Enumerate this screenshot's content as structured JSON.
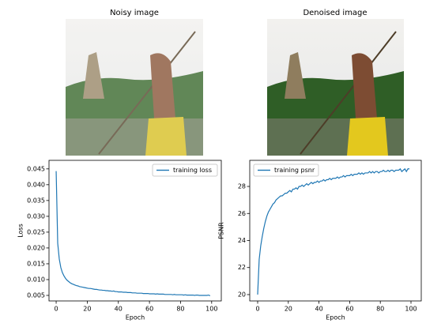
{
  "images": [
    {
      "title": "Noisy image"
    },
    {
      "title": "Denoised image"
    }
  ],
  "chart_data": [
    {
      "type": "line",
      "xlabel": "Epoch",
      "ylabel": "Loss",
      "legend": "upper right",
      "grid": false,
      "x": [
        0,
        1,
        2,
        3,
        4,
        5,
        6,
        7,
        8,
        9,
        10,
        11,
        12,
        13,
        14,
        15,
        16,
        17,
        18,
        19,
        20,
        21,
        22,
        23,
        24,
        25,
        26,
        27,
        28,
        29,
        30,
        31,
        32,
        33,
        34,
        35,
        36,
        37,
        38,
        39,
        40,
        41,
        42,
        43,
        44,
        45,
        46,
        47,
        48,
        49,
        50,
        51,
        52,
        53,
        54,
        55,
        56,
        57,
        58,
        59,
        60,
        61,
        62,
        63,
        64,
        65,
        66,
        67,
        68,
        69,
        70,
        71,
        72,
        73,
        74,
        75,
        76,
        77,
        78,
        79,
        80,
        81,
        82,
        83,
        84,
        85,
        86,
        87,
        88,
        89,
        90,
        91,
        92,
        93,
        94,
        95,
        96,
        97,
        98,
        99
      ],
      "series": [
        {
          "name": "training loss",
          "color": "#1f77b4",
          "values": [
            0.0443,
            0.0215,
            0.0165,
            0.0138,
            0.0122,
            0.0112,
            0.0104,
            0.0098,
            0.0094,
            0.009,
            0.0087,
            0.0085,
            0.0083,
            0.0081,
            0.008,
            0.0078,
            0.0077,
            0.0076,
            0.0075,
            0.0074,
            0.0073,
            0.0072,
            0.0072,
            0.0071,
            0.007,
            0.0069,
            0.0069,
            0.0068,
            0.0067,
            0.0067,
            0.0066,
            0.0066,
            0.0065,
            0.0065,
            0.0064,
            0.0064,
            0.0063,
            0.0064,
            0.0062,
            0.0062,
            0.0061,
            0.0061,
            0.0061,
            0.006,
            0.006,
            0.006,
            0.0059,
            0.0059,
            0.0059,
            0.0058,
            0.0058,
            0.0058,
            0.0057,
            0.0057,
            0.0057,
            0.0057,
            0.0056,
            0.0056,
            0.0056,
            0.0056,
            0.0055,
            0.0055,
            0.0055,
            0.0055,
            0.0054,
            0.0055,
            0.0054,
            0.0054,
            0.0054,
            0.0054,
            0.0053,
            0.0053,
            0.0053,
            0.0053,
            0.0053,
            0.0052,
            0.0053,
            0.0052,
            0.0052,
            0.0052,
            0.0052,
            0.0052,
            0.0051,
            0.0052,
            0.0051,
            0.0051,
            0.0051,
            0.0051,
            0.0051,
            0.005,
            0.0051,
            0.0051,
            0.005,
            0.005,
            0.005,
            0.005,
            0.005,
            0.005,
            0.0051,
            0.0049
          ]
        }
      ],
      "xlim": [
        -4.6,
        106.2
      ],
      "xticks": [
        0,
        20,
        40,
        60,
        80,
        100
      ],
      "ylim": [
        0.00325,
        0.0477
      ],
      "yticks": [
        0.005,
        {
          "value": 0.01,
          "label": "0.010"
        },
        0.015,
        {
          "value": 0.02,
          "label": "0.020"
        },
        0.025,
        {
          "value": 0.03,
          "label": "0.030"
        },
        0.035,
        {
          "value": 0.04,
          "label": "0.040"
        },
        0.045
      ]
    },
    {
      "type": "line",
      "xlabel": "Epoch",
      "ylabel": "PSNR",
      "legend": "upper left",
      "grid": false,
      "x": [
        0,
        1,
        2,
        3,
        4,
        5,
        6,
        7,
        8,
        9,
        10,
        11,
        12,
        13,
        14,
        15,
        16,
        17,
        18,
        19,
        20,
        21,
        22,
        23,
        24,
        25,
        26,
        27,
        28,
        29,
        30,
        31,
        32,
        33,
        34,
        35,
        36,
        37,
        38,
        39,
        40,
        41,
        42,
        43,
        44,
        45,
        46,
        47,
        48,
        49,
        50,
        51,
        52,
        53,
        54,
        55,
        56,
        57,
        58,
        59,
        60,
        61,
        62,
        63,
        64,
        65,
        66,
        67,
        68,
        69,
        70,
        71,
        72,
        73,
        74,
        75,
        76,
        77,
        78,
        79,
        80,
        81,
        82,
        83,
        84,
        85,
        86,
        87,
        88,
        89,
        90,
        91,
        92,
        93,
        94,
        95,
        96,
        97,
        98,
        99
      ],
      "series": [
        {
          "name": "training psnr",
          "color": "#1f77b4",
          "values": [
            20.0,
            22.6,
            23.6,
            24.3,
            24.9,
            25.4,
            25.8,
            26.1,
            26.3,
            26.5,
            26.7,
            26.8,
            27.0,
            27.1,
            27.2,
            27.3,
            27.3,
            27.4,
            27.5,
            27.5,
            27.6,
            27.7,
            27.6,
            27.8,
            27.8,
            27.9,
            27.8,
            28.0,
            28.0,
            28.1,
            28.0,
            28.1,
            28.2,
            28.1,
            28.2,
            28.3,
            28.2,
            28.3,
            28.3,
            28.4,
            28.3,
            28.4,
            28.4,
            28.5,
            28.4,
            28.5,
            28.5,
            28.6,
            28.5,
            28.6,
            28.6,
            28.6,
            28.7,
            28.6,
            28.7,
            28.7,
            28.8,
            28.7,
            28.8,
            28.8,
            28.8,
            28.9,
            28.8,
            28.9,
            28.9,
            28.9,
            29.0,
            28.9,
            29.0,
            28.9,
            29.0,
            29.0,
            29.0,
            29.1,
            29.0,
            29.1,
            29.0,
            29.1,
            29.1,
            29.0,
            29.1,
            29.1,
            29.2,
            29.1,
            29.1,
            29.2,
            29.1,
            29.2,
            29.2,
            29.1,
            29.2,
            29.2,
            29.2,
            29.3,
            29.1,
            29.2,
            29.3,
            29.1,
            29.3,
            29.3
          ]
        }
      ],
      "xlim": [
        -5.15,
        106.7
      ],
      "xticks": [
        0,
        20,
        40,
        60,
        80,
        100
      ],
      "ylim": [
        19.53,
        29.93
      ],
      "yticks": [
        20,
        22,
        24,
        26,
        28
      ]
    }
  ]
}
